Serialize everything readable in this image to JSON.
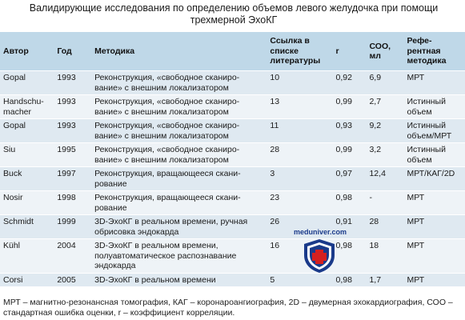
{
  "title": "Валидирующие исследования по определению объемов левого желудочка при помощи трехмерной ЭхоКГ",
  "headers": {
    "author": "Автор",
    "year": "Год",
    "method": "Методика",
    "ref": "Ссылка в списке литературы",
    "r": "r",
    "coo": "СОО, мл",
    "refmethod": "Рефе-рентная методика"
  },
  "rows": [
    {
      "author": "Gopal",
      "year": "1993",
      "method": "Реконструкция, «свободное сканиро-вание» с внешним локализатором",
      "ref": "10",
      "r": "0,92",
      "coo": "6,9",
      "refmethod": "МРТ"
    },
    {
      "author": "Handschu-macher",
      "year": "1993",
      "method": "Реконструкция, «свободное сканиро-вание» с внешним локализатором",
      "ref": "13",
      "r": "0,99",
      "coo": "2,7",
      "refmethod": "Истинный объем"
    },
    {
      "author": "Gopal",
      "year": "1993",
      "method": "Реконструкция, «свободное сканиро-вание» с внешним локализатором",
      "ref": "11",
      "r": "0,93",
      "coo": "9,2",
      "refmethod": "Истинный объем/МРТ"
    },
    {
      "author": "Siu",
      "year": "1995",
      "method": "Реконструкция, «свободное сканиро-вание» с внешним локализатором",
      "ref": "28",
      "r": "0,99",
      "coo": "3,2",
      "refmethod": "Истинный объем"
    },
    {
      "author": "Buck",
      "year": "1997",
      "method": "Реконструкция, вращающееся скани-рование",
      "ref": "3",
      "r": "0,97",
      "coo": "12,4",
      "refmethod": "МРТ/КАГ/2D"
    },
    {
      "author": "Nosir",
      "year": "1998",
      "method": "Реконструкция, вращающееся скани-рование",
      "ref": "23",
      "r": "0,98",
      "coo": "-",
      "refmethod": "МРТ"
    },
    {
      "author": "Schmidt",
      "year": "1999",
      "method": "3D-ЭхоКГ в реальном времени, ручная обрисовка эндокарда",
      "ref": "26",
      "r": "0,91",
      "coo": "28",
      "refmethod": "МРТ"
    },
    {
      "author": "Kühl",
      "year": "2004",
      "method": "3D-ЭхоКГ в реальном времени, полуавтоматическое распознавание эндокарда",
      "ref": "16",
      "r": "0,98",
      "coo": "18",
      "refmethod": "МРТ"
    },
    {
      "author": "Corsi",
      "year": "2005",
      "method": "3D-ЭхоКГ в реальном времени",
      "ref": "5",
      "r": "0,98",
      "coo": "1,7",
      "refmethod": "МРТ"
    }
  ],
  "footnote": "МРТ – магнитно-резонансная томография, КАГ – коронароангиография, 2D – двумерная эхокардиография, СОО – стандартная ошибка оценки, r – коэффициент корреляции.",
  "watermark": "meduniver.com",
  "colors": {
    "header_bg": "#bfd8e8",
    "row_odd": "#dfe9f1",
    "row_even": "#eef3f7",
    "shield_blue": "#1a3a8a",
    "shield_red": "#d42020"
  }
}
